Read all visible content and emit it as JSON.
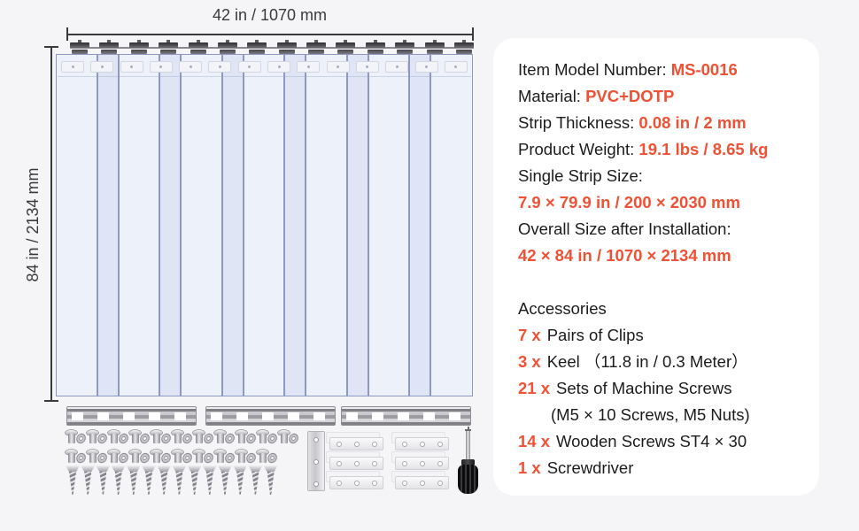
{
  "colors": {
    "accent": "#F05134",
    "text": "#1C1C1E",
    "panel": "#FFFFFF",
    "background": "#F5F5F7",
    "strip_fill": "#EDF1FA",
    "strip_overlap": "#DFE5F4",
    "strip_border": "#8E99C3"
  },
  "diagram": {
    "width_label": "42 in / 1070 mm",
    "height_label": "84 in / 2134 mm",
    "wide_strips": 7,
    "overlap_strips": 6,
    "rail_clips": 14,
    "top_clip_plates": 14,
    "keels": 3,
    "machine_screw_rows": [
      11,
      10
    ],
    "wooden_screws": 14,
    "clip_plate_rows": 3,
    "clip_plate_columns": 2,
    "vertical_clip_plates": 1,
    "screwdrivers": 1
  },
  "specs": {
    "lines": [
      {
        "segments": [
          {
            "text": "Item Model Number: ",
            "style": "k"
          },
          {
            "text": "MS-0016",
            "style": "o"
          }
        ]
      },
      {
        "segments": [
          {
            "text": "Material: ",
            "style": "k"
          },
          {
            "text": "PVC+DOTP",
            "style": "o"
          }
        ]
      },
      {
        "segments": [
          {
            "text": "Strip Thickness: ",
            "style": "k"
          },
          {
            "text": "0.08 in / 2 mm",
            "style": "o"
          }
        ]
      },
      {
        "segments": [
          {
            "text": "Product Weight: ",
            "style": "k"
          },
          {
            "text": "19.1 lbs / 8.65 kg",
            "style": "o"
          }
        ]
      },
      {
        "segments": [
          {
            "text": "Single Strip Size:",
            "style": "k"
          }
        ]
      },
      {
        "segments": [
          {
            "text": "7.9 × 79.9 in / 200 × 2030 mm",
            "style": "o"
          }
        ]
      },
      {
        "segments": [
          {
            "text": "Overall Size after Installation:",
            "style": "k"
          }
        ]
      },
      {
        "segments": [
          {
            "text": "42 × 84 in / 1070 × 2134 mm",
            "style": "o"
          }
        ]
      }
    ]
  },
  "accessories": {
    "title": "Accessories",
    "items": [
      {
        "qty": "7 x",
        "text": "Pairs of Clips",
        "indent": false
      },
      {
        "qty": "3 x",
        "text": "Keel （11.8 in / 0.3 Meter）",
        "indent": false
      },
      {
        "qty": "21 x",
        "text": "Sets of Machine Screws",
        "indent": false
      },
      {
        "qty": "",
        "text": "(M5 × 10 Screws, M5 Nuts)",
        "indent": true
      },
      {
        "qty": "14 x",
        "text": "Wooden Screws ST4 × 30",
        "indent": false
      },
      {
        "qty": "1 x",
        "text": "Screwdriver",
        "indent": false
      }
    ]
  }
}
